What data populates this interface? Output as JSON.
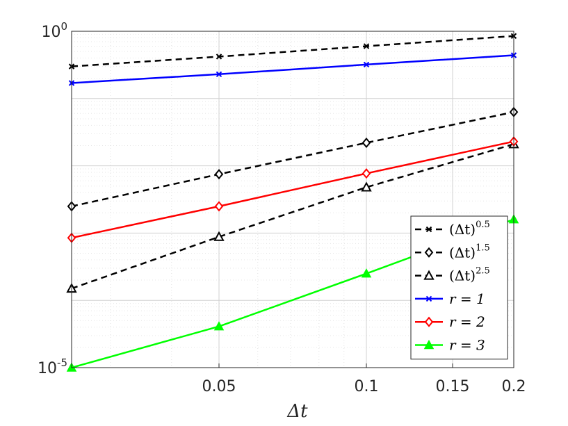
{
  "chart_data": {
    "type": "line",
    "title": "",
    "xlabel": "Δt",
    "ylabel": "",
    "xscale": "log",
    "yscale": "log",
    "xlim": [
      0.025,
      0.2
    ],
    "ylim": [
      1e-05,
      1
    ],
    "xticks": [
      {
        "value": 0.05,
        "label": "0.05"
      },
      {
        "value": 0.1,
        "label": "0.1"
      },
      {
        "value": 0.15,
        "label": "0.15"
      },
      {
        "value": 0.2,
        "label": "0.2"
      }
    ],
    "yticks": [
      {
        "value": 1,
        "base": "10",
        "exp": "0"
      },
      {
        "value": 1e-05,
        "base": "10",
        "exp": "-5"
      }
    ],
    "grid": true,
    "legend_position": "bottom-right",
    "x": [
      0.025,
      0.05,
      0.1,
      0.2
    ],
    "series": [
      {
        "name": "(Δt)^0.5",
        "legend_base": "(Δt)",
        "legend_exp": "0.5",
        "color": "#000000",
        "dash": true,
        "marker": "x",
        "values": [
          0.3,
          0.42,
          0.6,
          0.85
        ]
      },
      {
        "name": "(Δt)^1.5",
        "legend_base": "(Δt)",
        "legend_exp": "1.5",
        "color": "#000000",
        "dash": true,
        "marker": "diamond",
        "values": [
          0.0025,
          0.0075,
          0.022,
          0.063
        ]
      },
      {
        "name": "(Δt)^2.5",
        "legend_base": "(Δt)",
        "legend_exp": "2.5",
        "color": "#000000",
        "dash": true,
        "marker": "triangle",
        "values": [
          0.00015,
          0.00088,
          0.0048,
          0.021
        ]
      },
      {
        "name": "r = 1",
        "legend_base": "r = 1",
        "legend_exp": "",
        "color": "#0000ff",
        "dash": false,
        "marker": "x",
        "values": [
          0.17,
          0.23,
          0.32,
          0.44
        ]
      },
      {
        "name": "r = 2",
        "legend_base": "r = 2",
        "legend_exp": "",
        "color": "#ff0000",
        "dash": false,
        "marker": "diamond",
        "values": [
          0.00085,
          0.0025,
          0.0077,
          0.023
        ]
      },
      {
        "name": "r = 3",
        "legend_base": "r = 3",
        "legend_exp": "",
        "color": "#00ff00",
        "dash": false,
        "marker": "triangle-filled",
        "values": [
          1e-05,
          4.1e-05,
          0.00025,
          0.0016
        ]
      }
    ]
  }
}
